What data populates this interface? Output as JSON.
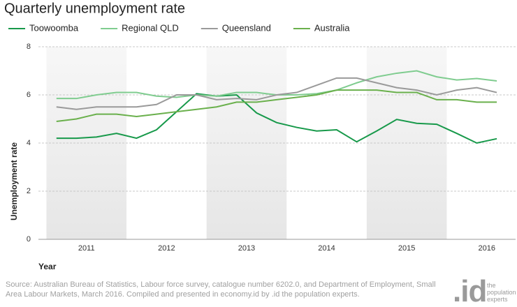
{
  "chart_data": {
    "type": "line",
    "title": "Quarterly unemployment rate",
    "y_label": "Unemployment rate",
    "x_label": "Year",
    "source": "Source: Australian Bureau of Statistics, Labour force survey, catalogue number 6202.0, and Department of Employment, Small Area Labour Markets, March 2016. Compiled and presented in economy.id by .id the population experts.",
    "x": [
      2011.125,
      2011.375,
      2011.625,
      2011.875,
      2012.125,
      2012.375,
      2012.625,
      2012.875,
      2013.125,
      2013.375,
      2013.625,
      2013.875,
      2014.125,
      2014.375,
      2014.625,
      2014.875,
      2015.125,
      2015.375,
      2015.625,
      2015.875,
      2016.125,
      2016.375,
      2016.625
    ],
    "series": [
      {
        "name": "Toowoomba",
        "color": "#17994a",
        "values": [
          4.2,
          4.2,
          4.25,
          4.4,
          4.2,
          4.55,
          5.3,
          6.05,
          5.95,
          6.0,
          5.25,
          4.85,
          4.65,
          4.5,
          4.55,
          4.05,
          4.5,
          4.98,
          4.82,
          4.78,
          4.4,
          4.0,
          4.18
        ]
      },
      {
        "name": "Regional QLD",
        "color": "#7fcc8f",
        "values": [
          5.85,
          5.85,
          6.0,
          6.1,
          6.1,
          5.95,
          5.9,
          6.0,
          5.95,
          6.1,
          6.1,
          6.0,
          6.0,
          6.05,
          6.2,
          6.5,
          6.75,
          6.9,
          7.0,
          6.75,
          6.62,
          6.68,
          6.58
        ]
      },
      {
        "name": "Queensland",
        "color": "#9a9a9a",
        "values": [
          5.5,
          5.4,
          5.5,
          5.5,
          5.5,
          5.6,
          6.0,
          6.0,
          5.8,
          5.85,
          5.8,
          6.0,
          6.1,
          6.4,
          6.7,
          6.7,
          6.5,
          6.3,
          6.2,
          6.0,
          6.2,
          6.3,
          6.1
        ]
      },
      {
        "name": "Australia",
        "color": "#6ab04c",
        "values": [
          4.9,
          5.0,
          5.2,
          5.2,
          5.1,
          5.2,
          5.3,
          5.4,
          5.5,
          5.7,
          5.7,
          5.8,
          5.9,
          6.0,
          6.2,
          6.2,
          6.2,
          6.1,
          6.1,
          5.8,
          5.8,
          5.7,
          5.7
        ]
      }
    ],
    "xlim": [
      2010.9,
      2016.86
    ],
    "xticks": [
      {
        "value": 2011.5,
        "label": "2011"
      },
      {
        "value": 2012.5,
        "label": "2012"
      },
      {
        "value": 2013.5,
        "label": "2013"
      },
      {
        "value": 2014.5,
        "label": "2014"
      },
      {
        "value": 2015.5,
        "label": "2015"
      },
      {
        "value": 2016.5,
        "label": "2016"
      }
    ],
    "ylim": [
      0,
      8
    ],
    "yticks": [
      0,
      2,
      4,
      6,
      8
    ],
    "grid": true,
    "legend": "top"
  },
  "logo": {
    "mark": ".id",
    "tagline": "the population experts"
  }
}
